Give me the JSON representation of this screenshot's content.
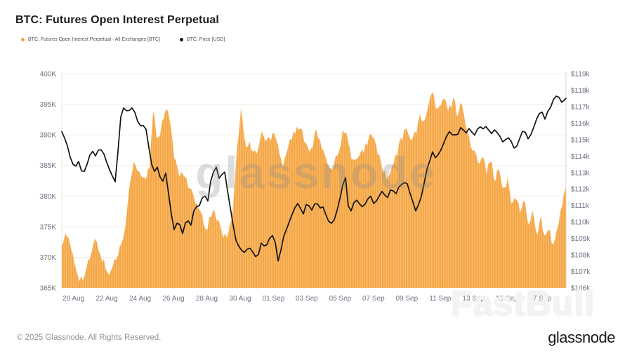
{
  "header": {
    "title": "BTC: Futures Open Interest Perpetual"
  },
  "legend": [
    {
      "label": "BTC: Futures Open Interest Perpetual - All Exchanges [BTC]",
      "color": "#f2a43f"
    },
    {
      "label": "BTC: Price [USD]",
      "color": "#141414"
    }
  ],
  "watermarks": {
    "center": "glassnode",
    "corner": "FastBull"
  },
  "footer": {
    "copyright": "© 2025 Glassnode. All Rights Reserved.",
    "brand": "glassnode"
  },
  "colors": {
    "area": "#f4a644",
    "area_stripe": "#f9bd72",
    "line": "#141414",
    "grid": "#f3efe9",
    "edge_left": "#eee8e0",
    "edge_right": "#d8d5d0",
    "axis_text": "#6b7280"
  },
  "chart_data": {
    "type": "area+line",
    "title": "BTC: Futures Open Interest Perpetual",
    "t_start": -0.7,
    "t_end": 29.55,
    "x_ticks": [
      {
        "t": 0,
        "label": "20 Aug"
      },
      {
        "t": 2,
        "label": "22 Aug"
      },
      {
        "t": 4,
        "label": "24 Aug"
      },
      {
        "t": 6,
        "label": "26 Aug"
      },
      {
        "t": 8,
        "label": "28 Aug"
      },
      {
        "t": 10,
        "label": "30 Aug"
      },
      {
        "t": 12,
        "label": "01 Sep"
      },
      {
        "t": 14,
        "label": "03 Sep"
      },
      {
        "t": 16,
        "label": "05 Sep"
      },
      {
        "t": 18,
        "label": "07 Sep"
      },
      {
        "t": 20,
        "label": "09 Sep"
      },
      {
        "t": 22,
        "label": "11 Sep"
      },
      {
        "t": 24,
        "label": "13 Sep"
      },
      {
        "t": 26,
        "label": "15 Sep"
      },
      {
        "t": 28,
        "label": "17 Sep"
      }
    ],
    "left_axis": {
      "min": 365,
      "max": 400,
      "unit": "K BTC",
      "ticks": [
        {
          "v": 400,
          "label": "400K"
        },
        {
          "v": 395,
          "label": "395K"
        },
        {
          "v": 390,
          "label": "390K"
        },
        {
          "v": 385,
          "label": "385K"
        },
        {
          "v": 380,
          "label": "380K"
        },
        {
          "v": 375,
          "label": "375K"
        },
        {
          "v": 370,
          "label": "370K"
        },
        {
          "v": 365,
          "label": "365K"
        }
      ]
    },
    "right_axis": {
      "min": 106,
      "max": 119,
      "unit": "k USD",
      "ticks": [
        {
          "v": 119,
          "label": "$119k"
        },
        {
          "v": 118,
          "label": "$118k"
        },
        {
          "v": 117,
          "label": "$117k"
        },
        {
          "v": 116,
          "label": "$116k"
        },
        {
          "v": 115,
          "label": "$115k"
        },
        {
          "v": 114,
          "label": "$114k"
        },
        {
          "v": 113,
          "label": "$113k"
        },
        {
          "v": 112,
          "label": "$112k"
        },
        {
          "v": 111,
          "label": "$111k"
        },
        {
          "v": 110,
          "label": "$110k"
        },
        {
          "v": 109,
          "label": "$109k"
        },
        {
          "v": 108,
          "label": "$108k"
        },
        {
          "v": 107,
          "label": "$107k"
        },
        {
          "v": 106,
          "label": "$106k"
        }
      ]
    },
    "series": [
      {
        "name": "BTC: Futures Open Interest Perpetual - All Exchanges [BTC]",
        "axis": "left",
        "style": "area-bars",
        "values": [
          372.5,
          373.5,
          372.0,
          369.5,
          367.0,
          366.3,
          368.0,
          370.5,
          372.7,
          371.2,
          369.2,
          367.3,
          368.2,
          369.8,
          371.5,
          374.5,
          380.0,
          385.3,
          384.3,
          383.3,
          382.5,
          384.5,
          395.0,
          388.5,
          391.5,
          394.3,
          392.0,
          386.5,
          383.0,
          384.4,
          382.5,
          380.8,
          379.0,
          377.6,
          375.5,
          374.6,
          378.0,
          376.5,
          375.5,
          373.0,
          374.5,
          377.5,
          387.0,
          394.5,
          388.0,
          388.5,
          387.0,
          387.5,
          390.5,
          389.0,
          389.5,
          391.0,
          388.0,
          385.0,
          387.5,
          389.5,
          390.5,
          391.0,
          390.0,
          388.0,
          388.0,
          390.5,
          389.0,
          386.0,
          385.5,
          384.5,
          387.0,
          389.0,
          391.5,
          387.5,
          386.0,
          385.5,
          387.0,
          388.5,
          390.0,
          389.0,
          387.0,
          384.5,
          382.5,
          384.0,
          386.0,
          388.5,
          390.0,
          391.0,
          389.5,
          390.0,
          393.5,
          392.0,
          394.5,
          397.5,
          393.5,
          395.0,
          395.5,
          394.0,
          396.3,
          393.0,
          395.8,
          391.5,
          388.5,
          387.0,
          385.5,
          387.5,
          384.0,
          386.0,
          382.5,
          384.5,
          380.5,
          382.5,
          378.5,
          380.5,
          377.0,
          379.5,
          375.5,
          377.5,
          374.0,
          376.5,
          372.5,
          375.0,
          371.5,
          374.5,
          378.5,
          381.5
        ]
      },
      {
        "name": "BTC: Price [USD]",
        "axis": "right",
        "style": "line",
        "values": [
          115.6,
          114.9,
          113.9,
          113.2,
          113.7,
          112.9,
          113.5,
          114.4,
          114.0,
          114.5,
          114.1,
          113.5,
          112.8,
          112.3,
          116.3,
          117.1,
          116.6,
          117.0,
          116.3,
          115.8,
          115.9,
          114.4,
          112.9,
          113.4,
          112.4,
          113.1,
          110.8,
          109.6,
          110.0,
          109.3,
          110.2,
          109.8,
          111.0,
          110.9,
          111.8,
          111.2,
          113.0,
          113.3,
          112.5,
          113.2,
          111.5,
          109.9,
          108.6,
          108.4,
          108.0,
          108.5,
          108.1,
          107.9,
          108.8,
          108.5,
          109.0,
          109.2,
          107.4,
          108.9,
          109.5,
          110.4,
          110.9,
          111.1,
          110.5,
          111.2,
          110.7,
          111.3,
          110.9,
          110.8,
          110.1,
          109.9,
          110.7,
          111.6,
          113.0,
          110.3,
          111.1,
          111.4,
          110.8,
          111.2,
          111.6,
          111.1,
          111.5,
          111.9,
          111.4,
          112.0,
          111.7,
          112.2,
          112.5,
          112.3,
          111.4,
          110.7,
          111.3,
          112.4,
          113.6,
          114.2,
          113.8,
          114.4,
          114.9,
          115.6,
          115.2,
          115.4,
          115.9,
          115.3,
          115.7,
          115.2,
          115.8,
          115.5,
          115.9,
          115.4,
          115.7,
          115.2,
          114.9,
          115.3,
          114.7,
          114.5,
          115.1,
          115.7,
          115.0,
          115.5,
          116.2,
          116.7,
          116.3,
          116.9,
          117.4,
          117.7,
          117.2,
          117.5
        ]
      }
    ]
  }
}
